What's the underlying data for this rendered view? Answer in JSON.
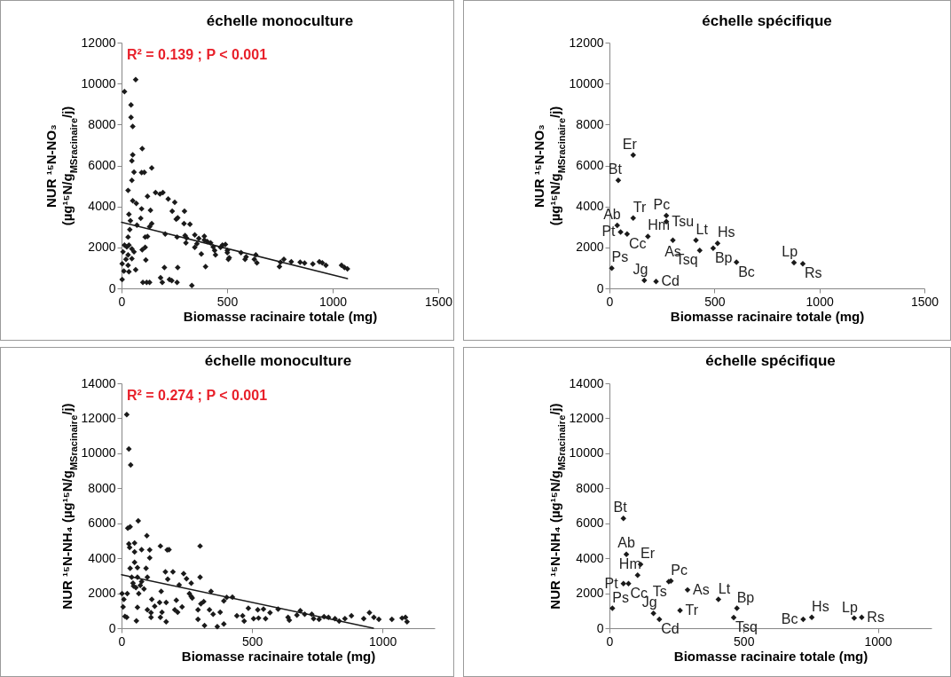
{
  "chart_data": [
    {
      "type": "scatter",
      "title": "échelle monoculture",
      "xlabel": "Biomasse racinaire totale (mg)",
      "ylabel": "NUR ¹⁵N-NO₃\n(µg¹⁵N/g$_{MSracinaire}$/j)",
      "xlim": [
        0,
        1500
      ],
      "xticks": [
        0,
        500,
        1000,
        1500
      ],
      "ylim": [
        0,
        12000
      ],
      "yticks": [
        0,
        2000,
        4000,
        6000,
        8000,
        10000,
        12000
      ],
      "annotations": [
        "R² = 0.139 ; P < 0.001"
      ],
      "series": [
        {
          "marker": "diamond",
          "color": "#1a1a1a",
          "x": [
            14,
            67,
            45,
            45,
            53,
            98,
            53,
            49,
            59,
            95,
            108,
            143,
            49,
            31,
            53,
            123,
            161,
            182,
            196,
            221,
            252,
            240,
            298,
            259,
            266,
            95,
            137,
            91,
            35,
            42,
            73,
            133,
            143,
            296,
            324,
            39,
            31,
            207,
            112,
            123,
            263,
            301,
            308,
            305,
            347,
            366,
            392,
            392,
            406,
            422,
            378,
            398,
            434,
            445,
            441,
            469,
            478,
            492,
            501,
            510,
            506,
            501,
            566,
            585,
            590,
            636,
            641,
            629,
            748,
            753,
            769,
            804,
            846,
            867,
            906,
            937,
            951,
            968,
            1042,
            1056,
            1070,
            7,
            14,
            25,
            35,
            49,
            59,
            31,
            21,
            3,
            11,
            3,
            31,
            35,
            67,
            112,
            115,
            49,
            98,
            101,
            119,
            133,
            185,
            193,
            227,
            238,
            263,
            266,
            203,
            333,
            357,
            347,
            70
          ],
          "values": [
            9607,
            10187,
            8955,
            8346,
            7911,
            6825,
            6521,
            6231,
            5680,
            5651,
            5666,
            5883,
            5274,
            4782,
            4274,
            4492,
            4680,
            4608,
            4680,
            4361,
            4202,
            3767,
            3767,
            3376,
            3449,
            3883,
            3811,
            3420,
            3622,
            3304,
            3086,
            3014,
            3159,
            3159,
            3130,
            2869,
            2507,
            2652,
            2507,
            2536,
            2507,
            2579,
            2463,
            2217,
            2608,
            2434,
            2550,
            2362,
            2289,
            2217,
            1681,
            1058,
            2029,
            1637,
            1855,
            2000,
            2115,
            2144,
            1739,
            1492,
            1420,
            1855,
            1739,
            1420,
            1536,
            1637,
            1246,
            1420,
            1058,
            1275,
            1420,
            1304,
            1275,
            1232,
            1188,
            1304,
            1246,
            1130,
            1130,
            1014,
            956,
            1782,
            2115,
            2029,
            2115,
            1927,
            1782,
            1637,
            1420,
            1203,
            840,
            435,
            1130,
            811,
            913,
            2000,
            1391,
            1449,
            1884,
            290,
            290,
            290,
            522,
            290,
            435,
            377,
            290,
            1014,
            1014,
            145,
            2174,
            2000,
            4144
          ]
        },
        {
          "type": "line",
          "color": "#1a1a1a",
          "x": [
            0,
            1070
          ],
          "values": [
            3231,
            478
          ]
        }
      ]
    },
    {
      "type": "scatter",
      "title": "échelle spécifique",
      "xlabel": "Biomasse racinaire totale (mg)",
      "ylabel": "NUR ¹⁵N-NO₃\n(µg¹⁵N/g$_{MSracinaire}$/j)",
      "xlim": [
        0,
        1500
      ],
      "xticks": [
        0,
        500,
        1000,
        1500
      ],
      "ylim": [
        0,
        12000
      ],
      "yticks": [
        0,
        2000,
        4000,
        6000,
        8000,
        10000,
        12000
      ],
      "series": [
        {
          "marker": "diamond",
          "color": "#1a1a1a",
          "x": [
            113,
            42,
            113,
            271,
            271,
            37,
            53,
            84,
            183,
            302,
            412,
            515,
            430,
            494,
            605,
            879,
            921,
            11,
            166,
            222
          ],
          "values": [
            6506,
            5274,
            3434,
            3550,
            3260,
            3072,
            2753,
            2652,
            2536,
            2347,
            2347,
            2202,
            1855,
            1956,
            1275,
            1261,
            1203,
            985,
            391,
            333
          ]
        }
      ],
      "annotations": [
        {
          "text": "Er",
          "x": 113,
          "y": 6506
        },
        {
          "text": "Bt",
          "x": 42,
          "y": 5274
        },
        {
          "text": "Tr",
          "x": 113,
          "y": 3434
        },
        {
          "text": "Pc",
          "x": 271,
          "y": 3550
        },
        {
          "text": "Tsu",
          "x": 271,
          "y": 3260
        },
        {
          "text": "Ab",
          "x": 37,
          "y": 3072
        },
        {
          "text": "Pt",
          "x": 53,
          "y": 2753
        },
        {
          "text": "Cc",
          "x": 84,
          "y": 2652
        },
        {
          "text": "Hm",
          "x": 183,
          "y": 2536
        },
        {
          "text": "As",
          "x": 302,
          "y": 2347
        },
        {
          "text": "Lt",
          "x": 412,
          "y": 2347
        },
        {
          "text": "Hs",
          "x": 515,
          "y": 2202
        },
        {
          "text": "Tsq",
          "x": 430,
          "y": 1855
        },
        {
          "text": "Bp",
          "x": 494,
          "y": 1956
        },
        {
          "text": "Bc",
          "x": 605,
          "y": 1275
        },
        {
          "text": "Lp",
          "x": 879,
          "y": 1261
        },
        {
          "text": "Rs",
          "x": 921,
          "y": 1203
        },
        {
          "text": "Ps",
          "x": 11,
          "y": 985
        },
        {
          "text": "Jg",
          "x": 166,
          "y": 391
        },
        {
          "text": "Cd",
          "x": 222,
          "y": 333
        }
      ]
    },
    {
      "type": "scatter",
      "title": "échelle monoculture",
      "xlabel": "Biomasse racinaire totale (mg)",
      "ylabel": "NUR ¹⁵N-NH₄ (µg¹⁵N/g$_{MSracinaire}$/j)",
      "xlim": [
        0,
        1200
      ],
      "xticks": [
        0,
        500,
        1000
      ],
      "ylim": [
        0,
        14000
      ],
      "yticks": [
        0,
        2000,
        4000,
        6000,
        8000,
        10000,
        12000,
        14000
      ],
      "annotations": [
        "R² = 0.274 ; P < 0.001"
      ],
      "series": [
        {
          "marker": "diamond",
          "color": "#1a1a1a",
          "x": [
            20,
            28,
            35,
            64,
            24,
            33,
            97,
            301,
            28,
            31,
            50,
            77,
            108,
            149,
            175,
            182,
            108,
            50,
            50,
            33,
            61,
            94,
            168,
            197,
            177,
            238,
            249,
            267,
            301,
            221,
            99,
            39,
            44,
            61,
            77,
            72,
            86,
            66,
            46,
            55,
            22,
            2,
            9,
            6,
            13,
            20,
            61,
            57,
            116,
            99,
            113,
            113,
            127,
            152,
            146,
            155,
            149,
            171,
            171,
            210,
            204,
            215,
            232,
            260,
            267,
            271,
            293,
            304,
            315,
            293,
            318,
            343,
            337,
            351,
            367,
            378,
            392,
            392,
            403,
            425,
            442,
            464,
            470,
            486,
            506,
            522,
            525,
            544,
            552,
            569,
            600,
            638,
            643,
            672,
            685,
            702,
            729,
            736,
            757,
            776,
            793,
            818,
            834,
            856,
            881,
            928,
            950,
            967,
            986,
            1036,
            1075,
            1094,
            1088
          ],
          "values": [
            12211,
            10244,
            9328,
            6140,
            5715,
            5800,
            5292,
            4698,
            4817,
            4613,
            4868,
            4494,
            4477,
            4698,
            4477,
            4494,
            4019,
            4359,
            3765,
            3426,
            3460,
            3426,
            3222,
            3222,
            2798,
            3121,
            2832,
            2578,
            2917,
            2476,
            2917,
            2917,
            2578,
            2917,
            2663,
            2442,
            2239,
            1984,
            2408,
            2324,
            1984,
            1984,
            1645,
            1221,
            678,
            627,
            1187,
            424,
            1645,
            1052,
            882,
            627,
            1255,
            2103,
            1476,
            916,
            627,
            1476,
            373,
            1594,
            1052,
            916,
            1221,
            1984,
            1815,
            1730,
            1052,
            1391,
            1526,
            509,
            153,
            2103,
            1052,
            797,
            85,
            916,
            237,
            1560,
            1764,
            1781,
            712,
            712,
            407,
            1136,
            543,
            1052,
            577,
            1085,
            543,
            882,
            1085,
            627,
            458,
            746,
            1001,
            797,
            797,
            543,
            509,
            661,
            627,
            543,
            407,
            543,
            712,
            543,
            882,
            627,
            509,
            509,
            577,
            373,
            627
          ]
        },
        {
          "type": "line",
          "color": "#1a1a1a",
          "x": [
            0,
            965
          ],
          "values": [
            3060,
            0
          ]
        }
      ]
    },
    {
      "type": "scatter",
      "title": "échelle spécifique",
      "xlabel": "Biomasse racinaire totale (mg)",
      "ylabel": "NUR ¹⁵N-NH₄ (µg¹⁵N/g$_{MSracinaire}$/j)",
      "xlim": [
        0,
        1200
      ],
      "xticks": [
        0,
        500,
        1000
      ],
      "ylim": [
        0,
        14000
      ],
      "yticks": [
        0,
        2000,
        4000,
        6000,
        8000,
        10000,
        12000,
        14000
      ],
      "series": [
        {
          "marker": "diamond",
          "color": "#1a1a1a",
          "x": [
            52,
            63,
            116,
            105,
            52,
            71,
            221,
            229,
            291,
            406,
            475,
            463,
            263,
            11,
            164,
            186,
            722,
            754,
            912,
            940
          ],
          "values": [
            6275,
            4223,
            3646,
            3036,
            2544,
            2544,
            2663,
            2697,
            2188,
            1645,
            1136,
            611,
            1018,
            1136,
            848,
            509,
            509,
            627,
            577,
            627
          ]
        }
      ],
      "annotations": [
        {
          "text": "Bt",
          "x": 52,
          "y": 6275
        },
        {
          "text": "Ab",
          "x": 63,
          "y": 4223
        },
        {
          "text": "Er",
          "x": 116,
          "y": 3646
        },
        {
          "text": "Hm",
          "x": 105,
          "y": 3036
        },
        {
          "text": "Pt",
          "x": 52,
          "y": 2544
        },
        {
          "text": "Cc",
          "x": 71,
          "y": 2544
        },
        {
          "text": "Ts",
          "x": 221,
          "y": 2663
        },
        {
          "text": "Pc",
          "x": 229,
          "y": 2697
        },
        {
          "text": "As",
          "x": 291,
          "y": 2188
        },
        {
          "text": "Lt",
          "x": 406,
          "y": 1645
        },
        {
          "text": "Bp",
          "x": 475,
          "y": 1136
        },
        {
          "text": "Tsq",
          "x": 463,
          "y": 611
        },
        {
          "text": "Tr",
          "x": 263,
          "y": 1018
        },
        {
          "text": "Ps",
          "x": 11,
          "y": 1136
        },
        {
          "text": "Jg",
          "x": 164,
          "y": 848
        },
        {
          "text": "Cd",
          "x": 186,
          "y": 509
        },
        {
          "text": "Bc",
          "x": 722,
          "y": 509
        },
        {
          "text": "Hs",
          "x": 754,
          "y": 627
        },
        {
          "text": "Lp",
          "x": 912,
          "y": 577
        },
        {
          "text": "Rs",
          "x": 940,
          "y": 627
        }
      ]
    }
  ]
}
